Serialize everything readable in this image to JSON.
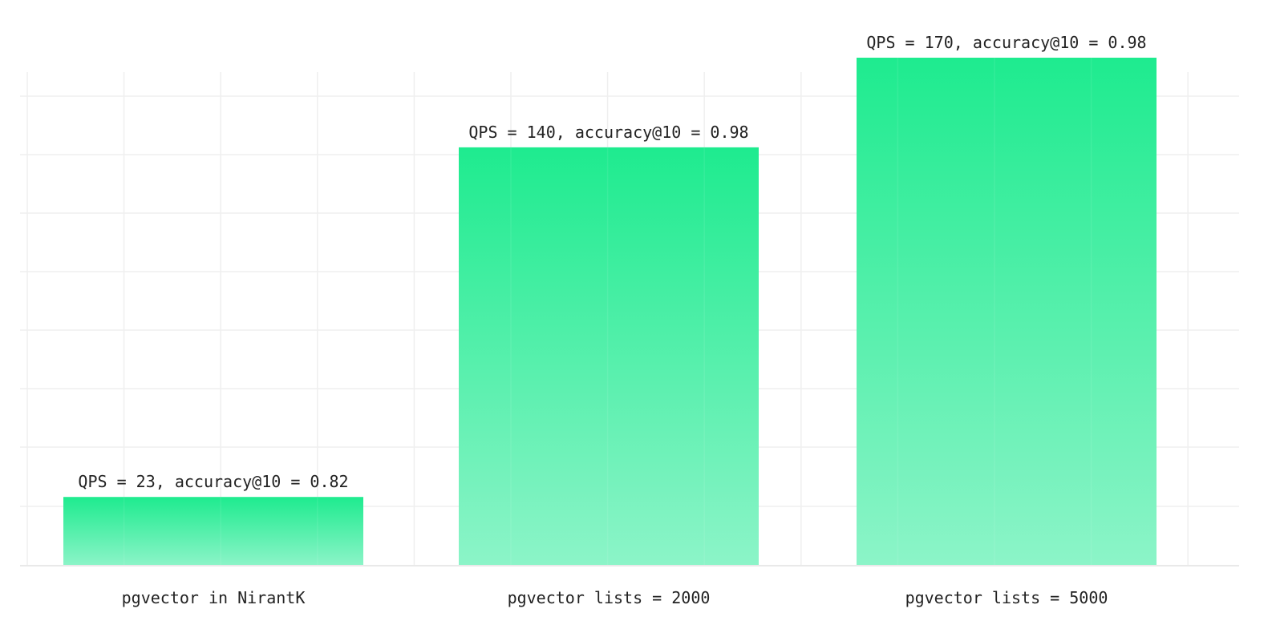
{
  "chart_data": {
    "type": "bar",
    "title": "",
    "xlabel": "",
    "ylabel": "",
    "categories": [
      "pgvector in NirantK",
      "pgvector lists = 2000",
      "pgvector lists = 5000"
    ],
    "values": [
      23,
      140,
      170
    ],
    "bar_labels": [
      "QPS = 23, accuracy@10 = 0.82",
      "QPS = 140, accuracy@10 = 0.98",
      "QPS = 170, accuracy@10 = 0.98"
    ],
    "ylim": [
      0,
      170
    ],
    "grid": true,
    "legend": "none",
    "colors": {
      "bar_top": "#1eeb8f",
      "bar_bottom": "#8cf4c8",
      "grid": "#efefef",
      "axis": "#e9e9e9",
      "text": "#222222"
    }
  }
}
